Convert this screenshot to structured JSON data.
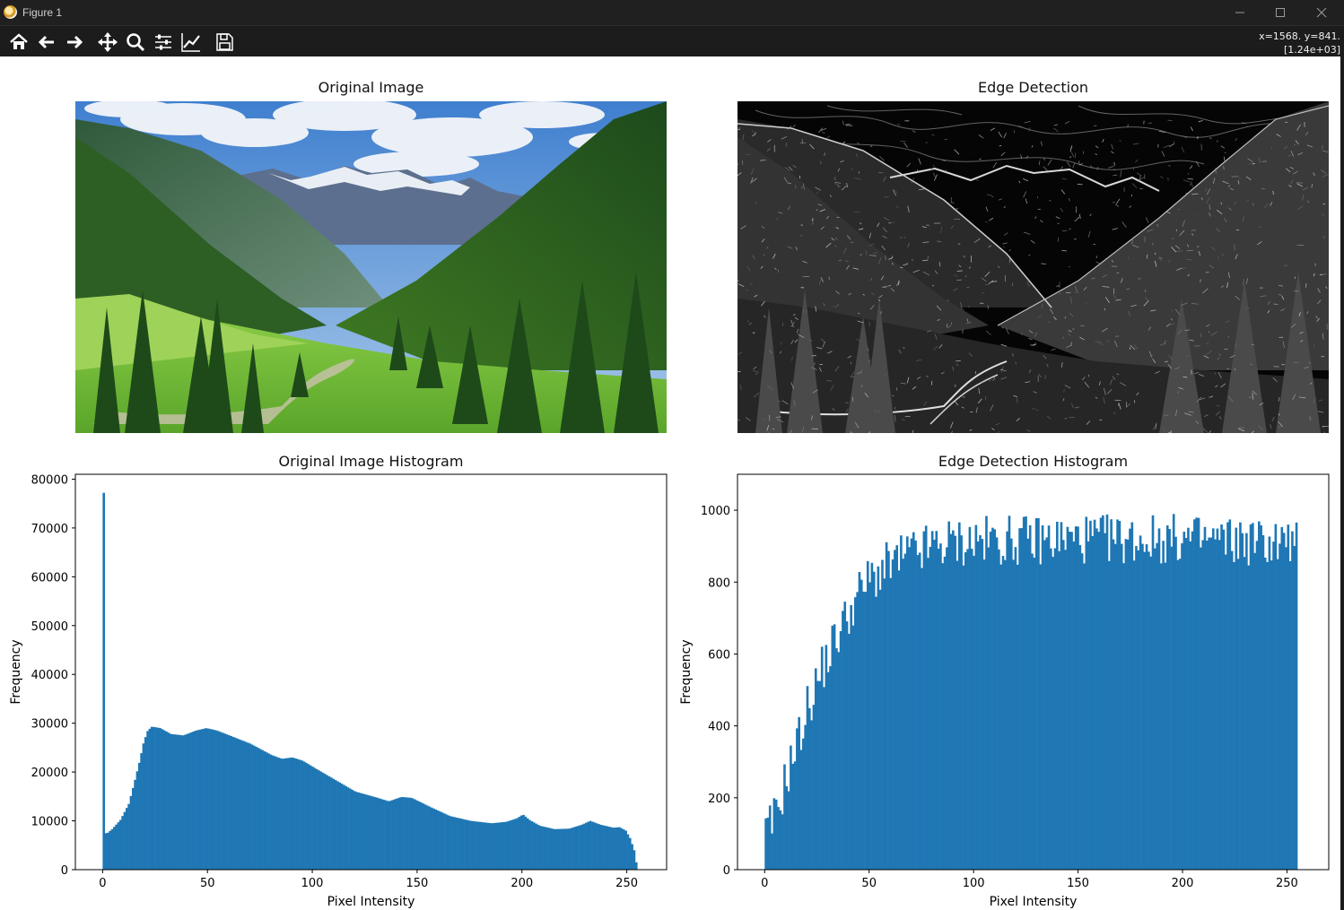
{
  "window": {
    "title": "Figure 1",
    "icon": "matplotlib-logo-icon",
    "controls": [
      "minimize-icon",
      "maximize-icon",
      "close-icon"
    ]
  },
  "toolbar": {
    "tools": [
      "home-icon",
      "back-arrow-icon",
      "forward-arrow-icon",
      "pan-move-icon",
      "zoom-magnifier-icon",
      "configure-subplots-icon",
      "edit-axis-icon",
      "save-floppy-icon"
    ],
    "coords_line1": "x=1568. y=841.",
    "coords_line2": "[1.24e+03]"
  },
  "subplots": {
    "top_left_title": "Original Image",
    "top_right_title": "Edge Detection",
    "bottom_left_title": "Original Image Histogram",
    "bottom_right_title": "Edge Detection Histogram"
  },
  "chart_data": [
    {
      "type": "bar",
      "title": "Original Image Histogram",
      "xlabel": "Pixel Intensity",
      "ylabel": "Frequency",
      "xlim": [
        -13,
        269
      ],
      "ylim": [
        0,
        81000
      ],
      "xticks": [
        "0",
        "50",
        "100",
        "150",
        "200",
        "250"
      ],
      "yticks": [
        "0",
        "10000",
        "20000",
        "30000",
        "40000",
        "50000",
        "60000",
        "70000",
        "80000"
      ],
      "bar_color": "#1f77b4",
      "bins": 256,
      "profile_points": [
        [
          0,
          77200
        ],
        [
          1,
          7200
        ],
        [
          4,
          8300
        ],
        [
          8,
          10200
        ],
        [
          12,
          13500
        ],
        [
          15,
          18500
        ],
        [
          17,
          22000
        ],
        [
          19,
          26000
        ],
        [
          21,
          28500
        ],
        [
          23,
          29300
        ],
        [
          27,
          29000
        ],
        [
          32,
          27800
        ],
        [
          38,
          27500
        ],
        [
          44,
          28500
        ],
        [
          49,
          29000
        ],
        [
          54,
          28500
        ],
        [
          60,
          27500
        ],
        [
          70,
          25800
        ],
        [
          80,
          23500
        ],
        [
          85,
          22700
        ],
        [
          90,
          23000
        ],
        [
          95,
          22300
        ],
        [
          100,
          21000
        ],
        [
          110,
          18500
        ],
        [
          120,
          16000
        ],
        [
          130,
          14800
        ],
        [
          136,
          14000
        ],
        [
          142,
          14900
        ],
        [
          147,
          14700
        ],
        [
          155,
          13000
        ],
        [
          165,
          11000
        ],
        [
          175,
          10000
        ],
        [
          185,
          9500
        ],
        [
          192,
          9800
        ],
        [
          197,
          10500
        ],
        [
          200,
          11300
        ],
        [
          203,
          10200
        ],
        [
          208,
          9000
        ],
        [
          215,
          8300
        ],
        [
          222,
          8400
        ],
        [
          228,
          9200
        ],
        [
          232,
          10000
        ],
        [
          237,
          9200
        ],
        [
          243,
          8600
        ],
        [
          246,
          8700
        ],
        [
          249,
          8000
        ],
        [
          251,
          6500
        ],
        [
          253,
          4000
        ],
        [
          254,
          1500
        ],
        [
          255,
          5200
        ]
      ]
    },
    {
      "type": "bar",
      "title": "Edge Detection Histogram",
      "xlabel": "Pixel Intensity",
      "ylabel": "Frequency",
      "xlim": [
        -13,
        270
      ],
      "ylim": [
        0,
        1100
      ],
      "xticks": [
        "0",
        "50",
        "100",
        "150",
        "200",
        "250"
      ],
      "yticks": [
        "0",
        "200",
        "400",
        "600",
        "800",
        "1000"
      ],
      "bar_color": "#1f77b4",
      "bins": 256,
      "profile_points": [
        [
          0,
          95
        ],
        [
          5,
          150
        ],
        [
          10,
          260
        ],
        [
          15,
          350
        ],
        [
          20,
          450
        ],
        [
          25,
          530
        ],
        [
          30,
          600
        ],
        [
          35,
          660
        ],
        [
          40,
          720
        ],
        [
          45,
          770
        ],
        [
          50,
          810
        ],
        [
          60,
          850
        ],
        [
          70,
          880
        ],
        [
          80,
          900
        ],
        [
          90,
          910
        ],
        [
          100,
          915
        ],
        [
          150,
          920
        ],
        [
          200,
          920
        ],
        [
          255,
          910
        ]
      ],
      "noise_amplitude": 70
    }
  ]
}
